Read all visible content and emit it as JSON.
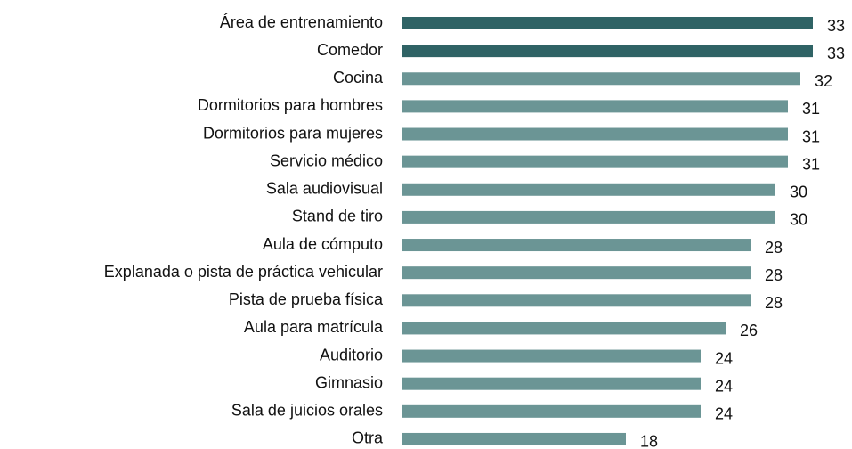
{
  "chart_data": {
    "type": "bar",
    "orientation": "horizontal",
    "categories": [
      "Área de entrenamiento",
      "Comedor",
      "Cocina",
      "Dormitorios para hombres",
      "Dormitorios para mujeres",
      "Servicio médico",
      "Sala audiovisual",
      "Stand de tiro",
      "Aula de cómputo",
      "Explanada o pista de práctica vehicular",
      "Pista de prueba física",
      "Aula para matrícula",
      "Auditorio",
      "Gimnasio",
      "Sala de juicios orales",
      "Otra"
    ],
    "values": [
      33,
      33,
      32,
      31,
      31,
      31,
      30,
      30,
      28,
      28,
      28,
      26,
      24,
      24,
      24,
      18
    ],
    "colors": [
      "#2f6365",
      "#2f6365",
      "#6b9595",
      "#6b9595",
      "#6b9595",
      "#6b9595",
      "#6b9595",
      "#6b9595",
      "#6b9595",
      "#6b9595",
      "#6b9595",
      "#6b9595",
      "#6b9595",
      "#6b9595",
      "#6b9595",
      "#6b9595"
    ]
  }
}
